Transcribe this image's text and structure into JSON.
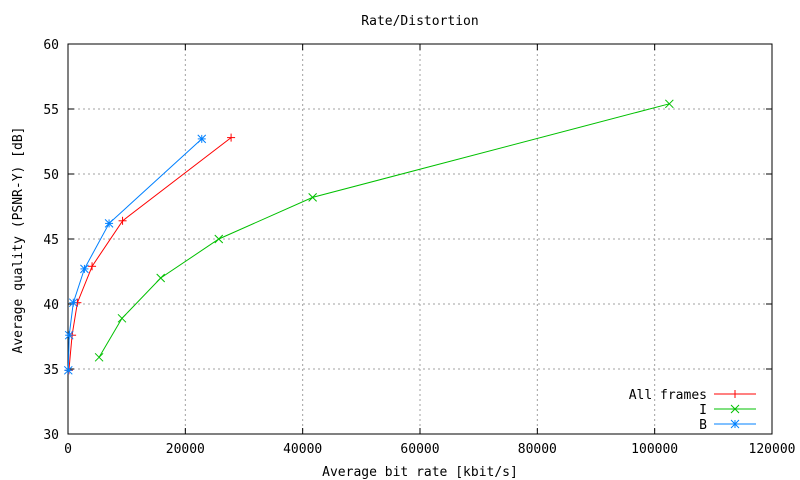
{
  "chart_data": {
    "type": "line",
    "title": "Rate/Distortion",
    "xlabel": "Average bit rate [kbit/s]",
    "ylabel": "Average quality (PSNR-Y) [dB]",
    "xlim": [
      0,
      120000
    ],
    "ylim": [
      30,
      60
    ],
    "xticks": [
      0,
      20000,
      40000,
      60000,
      80000,
      100000,
      120000
    ],
    "yticks": [
      30,
      35,
      40,
      45,
      50,
      55,
      60
    ],
    "grid": true,
    "legend_position": "bottom-right",
    "series": [
      {
        "name": "All frames",
        "color": "#ff0000",
        "marker": "plus",
        "points": [
          [
            150,
            34.9
          ],
          [
            700,
            37.6
          ],
          [
            1600,
            40.1
          ],
          [
            4100,
            42.9
          ],
          [
            9300,
            46.4
          ],
          [
            27800,
            52.8
          ]
        ]
      },
      {
        "name": "I",
        "color": "#00c000",
        "marker": "cross",
        "points": [
          [
            5300,
            35.9
          ],
          [
            9200,
            38.9
          ],
          [
            15800,
            42.0
          ],
          [
            25700,
            45.0
          ],
          [
            41700,
            48.2
          ],
          [
            102500,
            55.4
          ]
        ]
      },
      {
        "name": "B",
        "color": "#0080ff",
        "marker": "star",
        "points": [
          [
            50,
            34.9
          ],
          [
            200,
            37.6
          ],
          [
            900,
            40.1
          ],
          [
            2800,
            42.7
          ],
          [
            7000,
            46.2
          ],
          [
            22800,
            52.7
          ]
        ]
      }
    ]
  }
}
